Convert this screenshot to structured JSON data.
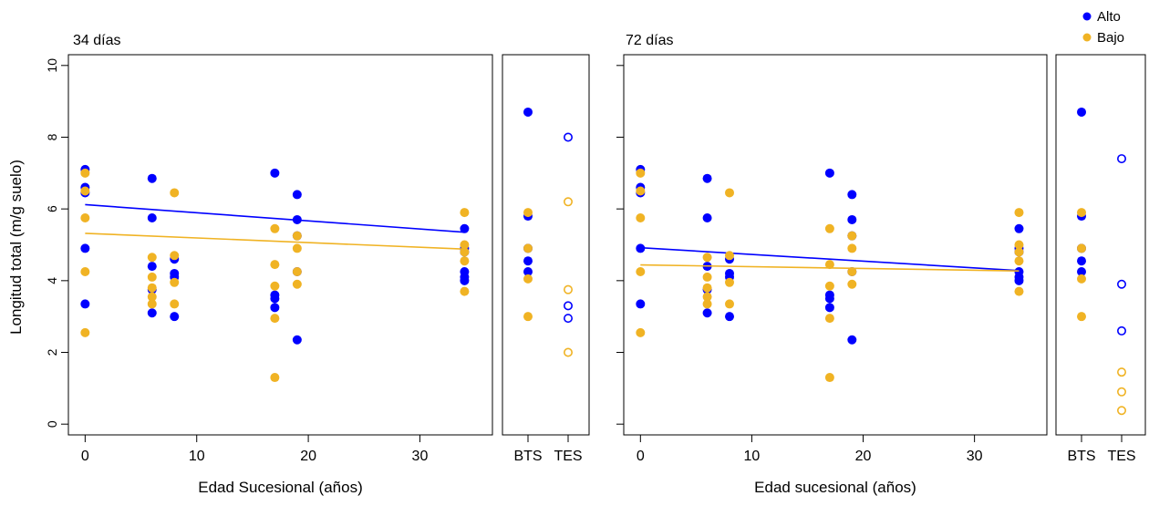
{
  "legend": {
    "position": "top-right",
    "items": [
      {
        "label": "Alto",
        "color": "#0000ff"
      },
      {
        "label": "Bajo",
        "color": "#f0b324"
      }
    ]
  },
  "ylabel": "Longitud total (m/g suelo)",
  "chart_data": [
    {
      "type": "scatter",
      "title": "34 días",
      "xlabel": "Edad Sucesional (años)",
      "ylabel": "Longitud total (m/g suelo)",
      "xlim": [
        -1.5,
        36.5
      ],
      "ylim": [
        -0.3,
        10.3
      ],
      "xticks": [
        0,
        10,
        20,
        30
      ],
      "yticks": [
        0,
        2,
        4,
        6,
        8,
        10
      ],
      "side_categories": [
        "BTS",
        "TES"
      ],
      "series": [
        {
          "name": "Alto",
          "color": "#0000ff",
          "x": [
            0,
            0,
            0,
            0,
            0,
            6,
            6,
            6,
            6,
            6,
            8,
            8,
            8,
            8,
            17,
            17,
            17,
            17,
            19,
            19,
            19,
            19,
            19,
            34,
            34,
            34,
            34,
            34,
            34
          ],
          "y": [
            7.1,
            6.6,
            6.45,
            4.9,
            3.35,
            6.85,
            5.75,
            4.4,
            3.75,
            3.1,
            4.6,
            4.2,
            4.1,
            3.0,
            7.0,
            3.6,
            3.5,
            3.25,
            6.4,
            5.7,
            5.25,
            4.25,
            2.35,
            5.45,
            4.9,
            4.8,
            4.25,
            4.1,
            4.0
          ],
          "trend": [
            [
              0,
              6.12
            ],
            [
              34,
              5.35
            ]
          ],
          "side": {
            "BTS": [
              8.7,
              5.8,
              4.9,
              4.55,
              4.25
            ],
            "TES": [
              8.0,
              3.3,
              2.95
            ]
          }
        },
        {
          "name": "Bajo",
          "color": "#f0b324",
          "x": [
            0,
            0,
            0,
            0,
            0,
            6,
            6,
            6,
            6,
            6,
            8,
            8,
            8,
            8,
            17,
            17,
            17,
            17,
            17,
            19,
            19,
            19,
            19,
            34,
            34,
            34,
            34,
            34
          ],
          "y": [
            7.0,
            6.5,
            5.75,
            4.25,
            2.55,
            4.65,
            4.1,
            3.8,
            3.55,
            3.35,
            6.45,
            4.7,
            3.95,
            3.35,
            5.45,
            4.45,
            3.85,
            2.95,
            1.3,
            5.25,
            4.9,
            4.25,
            3.9,
            5.9,
            5.0,
            4.8,
            4.55,
            3.7
          ],
          "trend": [
            [
              0,
              5.32
            ],
            [
              34,
              4.88
            ]
          ],
          "side": {
            "BTS": [
              5.9,
              4.9,
              4.05,
              3.0
            ],
            "TES": [
              6.2,
              3.75,
              2.0
            ]
          }
        }
      ]
    },
    {
      "type": "scatter",
      "title": "72 días",
      "xlabel": "Edad sucesional (años)",
      "ylabel": "",
      "xlim": [
        -1.5,
        36.5
      ],
      "ylim": [
        -0.3,
        10.3
      ],
      "xticks": [
        0,
        10,
        20,
        30
      ],
      "yticks": [
        0,
        2,
        4,
        6,
        8,
        10
      ],
      "side_categories": [
        "BTS",
        "TES"
      ],
      "series": [
        {
          "name": "Alto",
          "color": "#0000ff",
          "x": [
            0,
            0,
            0,
            0,
            0,
            6,
            6,
            6,
            6,
            6,
            8,
            8,
            8,
            8,
            17,
            17,
            17,
            17,
            19,
            19,
            19,
            19,
            19,
            34,
            34,
            34,
            34,
            34,
            34
          ],
          "y": [
            7.1,
            6.6,
            6.45,
            4.9,
            3.35,
            6.85,
            5.75,
            4.4,
            3.75,
            3.1,
            4.6,
            4.2,
            4.1,
            3.0,
            7.0,
            3.6,
            3.5,
            3.25,
            6.4,
            5.7,
            5.25,
            4.25,
            2.35,
            5.45,
            4.9,
            4.8,
            4.25,
            4.1,
            4.0
          ],
          "trend": [
            [
              0,
              4.92
            ],
            [
              34,
              4.28
            ]
          ],
          "side": {
            "BTS": [
              8.7,
              5.8,
              4.9,
              4.55,
              4.25
            ],
            "TES": [
              7.4,
              3.9,
              2.6
            ]
          }
        },
        {
          "name": "Bajo",
          "color": "#f0b324",
          "x": [
            0,
            0,
            0,
            0,
            0,
            6,
            6,
            6,
            6,
            6,
            8,
            8,
            8,
            8,
            17,
            17,
            17,
            17,
            17,
            19,
            19,
            19,
            19,
            34,
            34,
            34,
            34,
            34
          ],
          "y": [
            7.0,
            6.5,
            5.75,
            4.25,
            2.55,
            4.65,
            4.1,
            3.8,
            3.55,
            3.35,
            6.45,
            4.7,
            3.95,
            3.35,
            5.45,
            4.45,
            3.85,
            2.95,
            1.3,
            5.25,
            4.9,
            4.25,
            3.9,
            5.9,
            5.0,
            4.8,
            4.55,
            3.7
          ],
          "trend": [
            [
              0,
              4.44
            ],
            [
              34,
              4.27
            ]
          ],
          "side": {
            "BTS": [
              5.9,
              4.9,
              4.05,
              3.0
            ],
            "TES": [
              1.45,
              0.9,
              0.38
            ]
          }
        }
      ]
    }
  ]
}
